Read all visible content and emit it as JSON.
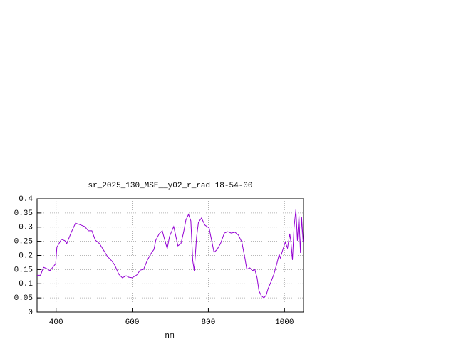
{
  "chart_data": {
    "type": "line",
    "title": "sr_2025_130_MSE__y02_r_rad 18-54-00",
    "x_label": "nm",
    "xlim": [
      350,
      1050
    ],
    "ylim": [
      0,
      0.4
    ],
    "xticks": [
      400,
      600,
      800,
      1000
    ],
    "yticks": [
      0,
      0.05,
      0.1,
      0.15,
      0.2,
      0.25,
      0.3,
      0.35,
      0.4
    ],
    "grid": true,
    "series": [
      {
        "color": "#9400d3",
        "x": [
          350,
          359,
          367,
          376,
          384,
          393,
          399,
          402,
          414,
          423,
          428,
          440,
          451,
          462,
          475,
          485,
          494,
          503,
          514,
          526,
          535,
          546,
          554,
          565,
          574,
          584,
          591,
          600,
          612,
          621,
          630,
          640,
          649,
          657,
          662,
          671,
          679,
          685,
          692,
          698,
          709,
          714,
          720,
          728,
          735,
          741,
          748,
          754,
          759,
          763,
          769,
          774,
          782,
          791,
          802,
          808,
          815,
          823,
          832,
          842,
          851,
          860,
          870,
          879,
          888,
          896,
          901,
          909,
          916,
          922,
          928,
          933,
          939,
          946,
          952,
          957,
          965,
          972,
          980,
          986,
          989,
          997,
          1002,
          1008,
          1014,
          1017,
          1021,
          1025,
          1030,
          1034,
          1038,
          1042,
          1045,
          1049
        ],
        "values": [
          0.13,
          0.13,
          0.158,
          0.153,
          0.146,
          0.161,
          0.171,
          0.229,
          0.257,
          0.252,
          0.242,
          0.282,
          0.314,
          0.309,
          0.302,
          0.287,
          0.287,
          0.254,
          0.242,
          0.216,
          0.196,
          0.181,
          0.166,
          0.133,
          0.121,
          0.128,
          0.123,
          0.121,
          0.131,
          0.148,
          0.151,
          0.184,
          0.206,
          0.221,
          0.254,
          0.277,
          0.287,
          0.257,
          0.224,
          0.267,
          0.302,
          0.272,
          0.234,
          0.242,
          0.282,
          0.325,
          0.345,
          0.322,
          0.181,
          0.146,
          0.264,
          0.317,
          0.332,
          0.307,
          0.297,
          0.257,
          0.211,
          0.221,
          0.242,
          0.279,
          0.284,
          0.279,
          0.282,
          0.272,
          0.247,
          0.191,
          0.151,
          0.156,
          0.146,
          0.151,
          0.121,
          0.075,
          0.058,
          0.05,
          0.06,
          0.083,
          0.108,
          0.133,
          0.171,
          0.204,
          0.191,
          0.226,
          0.247,
          0.226,
          0.277,
          0.247,
          0.184,
          0.297,
          0.362,
          0.252,
          0.34,
          0.209,
          0.335,
          0.247
        ]
      }
    ]
  }
}
